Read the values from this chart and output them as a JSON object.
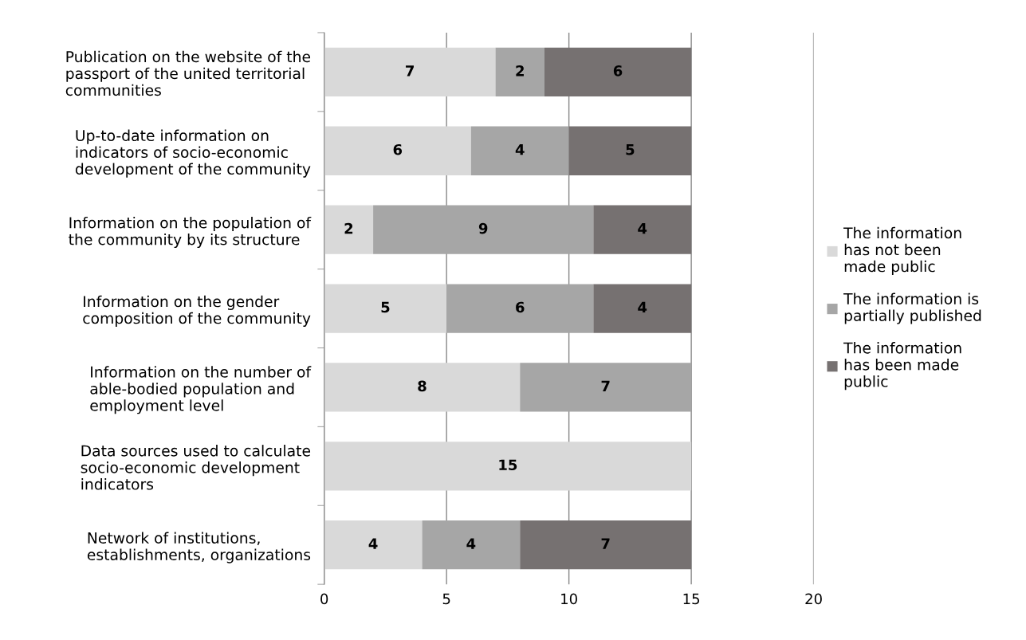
{
  "chart_data": {
    "type": "bar",
    "orientation": "horizontal",
    "stacked": true,
    "categories": [
      "Publication on the website of the\npassport of the united territorial\ncommunities",
      "Up-to-date information on\nindicators of socio-economic\ndevelopment of the community",
      "Information on the population of\nthe community by its structure",
      "Information on the gender\ncomposition of the community",
      "Information on the number of\nable-bodied population and\nemployment level",
      "Data sources used to calculate\nsocio-economic development\nindicators",
      "Network of institutions,\nestablishments, organizations"
    ],
    "series": [
      {
        "name": "The information\nhas not been\nmade public",
        "color": "#d9d9d9",
        "values": [
          7,
          6,
          2,
          5,
          8,
          15,
          4
        ]
      },
      {
        "name": "The information is\npartially published",
        "color": "#a6a6a6",
        "values": [
          2,
          4,
          9,
          6,
          7,
          null,
          4
        ]
      },
      {
        "name": "The information\nhas been made\npublic",
        "color": "#767171",
        "values": [
          6,
          5,
          4,
          4,
          null,
          null,
          7
        ]
      }
    ],
    "xlim": [
      0,
      20
    ],
    "xticks": [
      0,
      5,
      10,
      15,
      20
    ],
    "grid": "x",
    "legend": "right",
    "data_labels": true
  }
}
